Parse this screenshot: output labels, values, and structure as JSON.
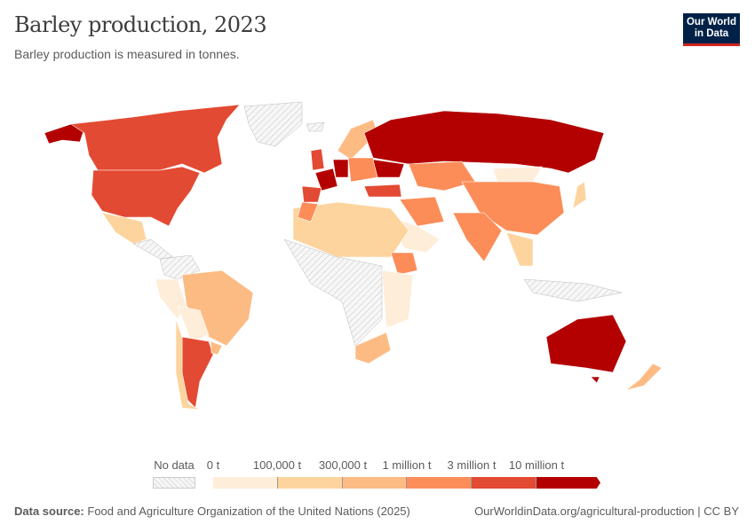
{
  "header": {
    "title": "Barley production, 2023",
    "subtitle": "Barley production is measured in tonnes.",
    "logo": "Our World in Data"
  },
  "legend": {
    "no_data_label": "No data",
    "bins": [
      {
        "label": "0 t",
        "color": "#feedd9"
      },
      {
        "label": "100,000 t",
        "color": "#fdd49e"
      },
      {
        "label": "300,000 t",
        "color": "#fdbb84"
      },
      {
        "label": "1 million t",
        "color": "#fc8d59"
      },
      {
        "label": "3 million t",
        "color": "#e34a33"
      },
      {
        "label": "10 million t",
        "color": "#b30000"
      }
    ]
  },
  "footer": {
    "source_label": "Data source:",
    "source": "Food and Agriculture Organization of the United Nations (2025)",
    "url": "OurWorldinData.org/agricultural-production | CC BY"
  }
}
